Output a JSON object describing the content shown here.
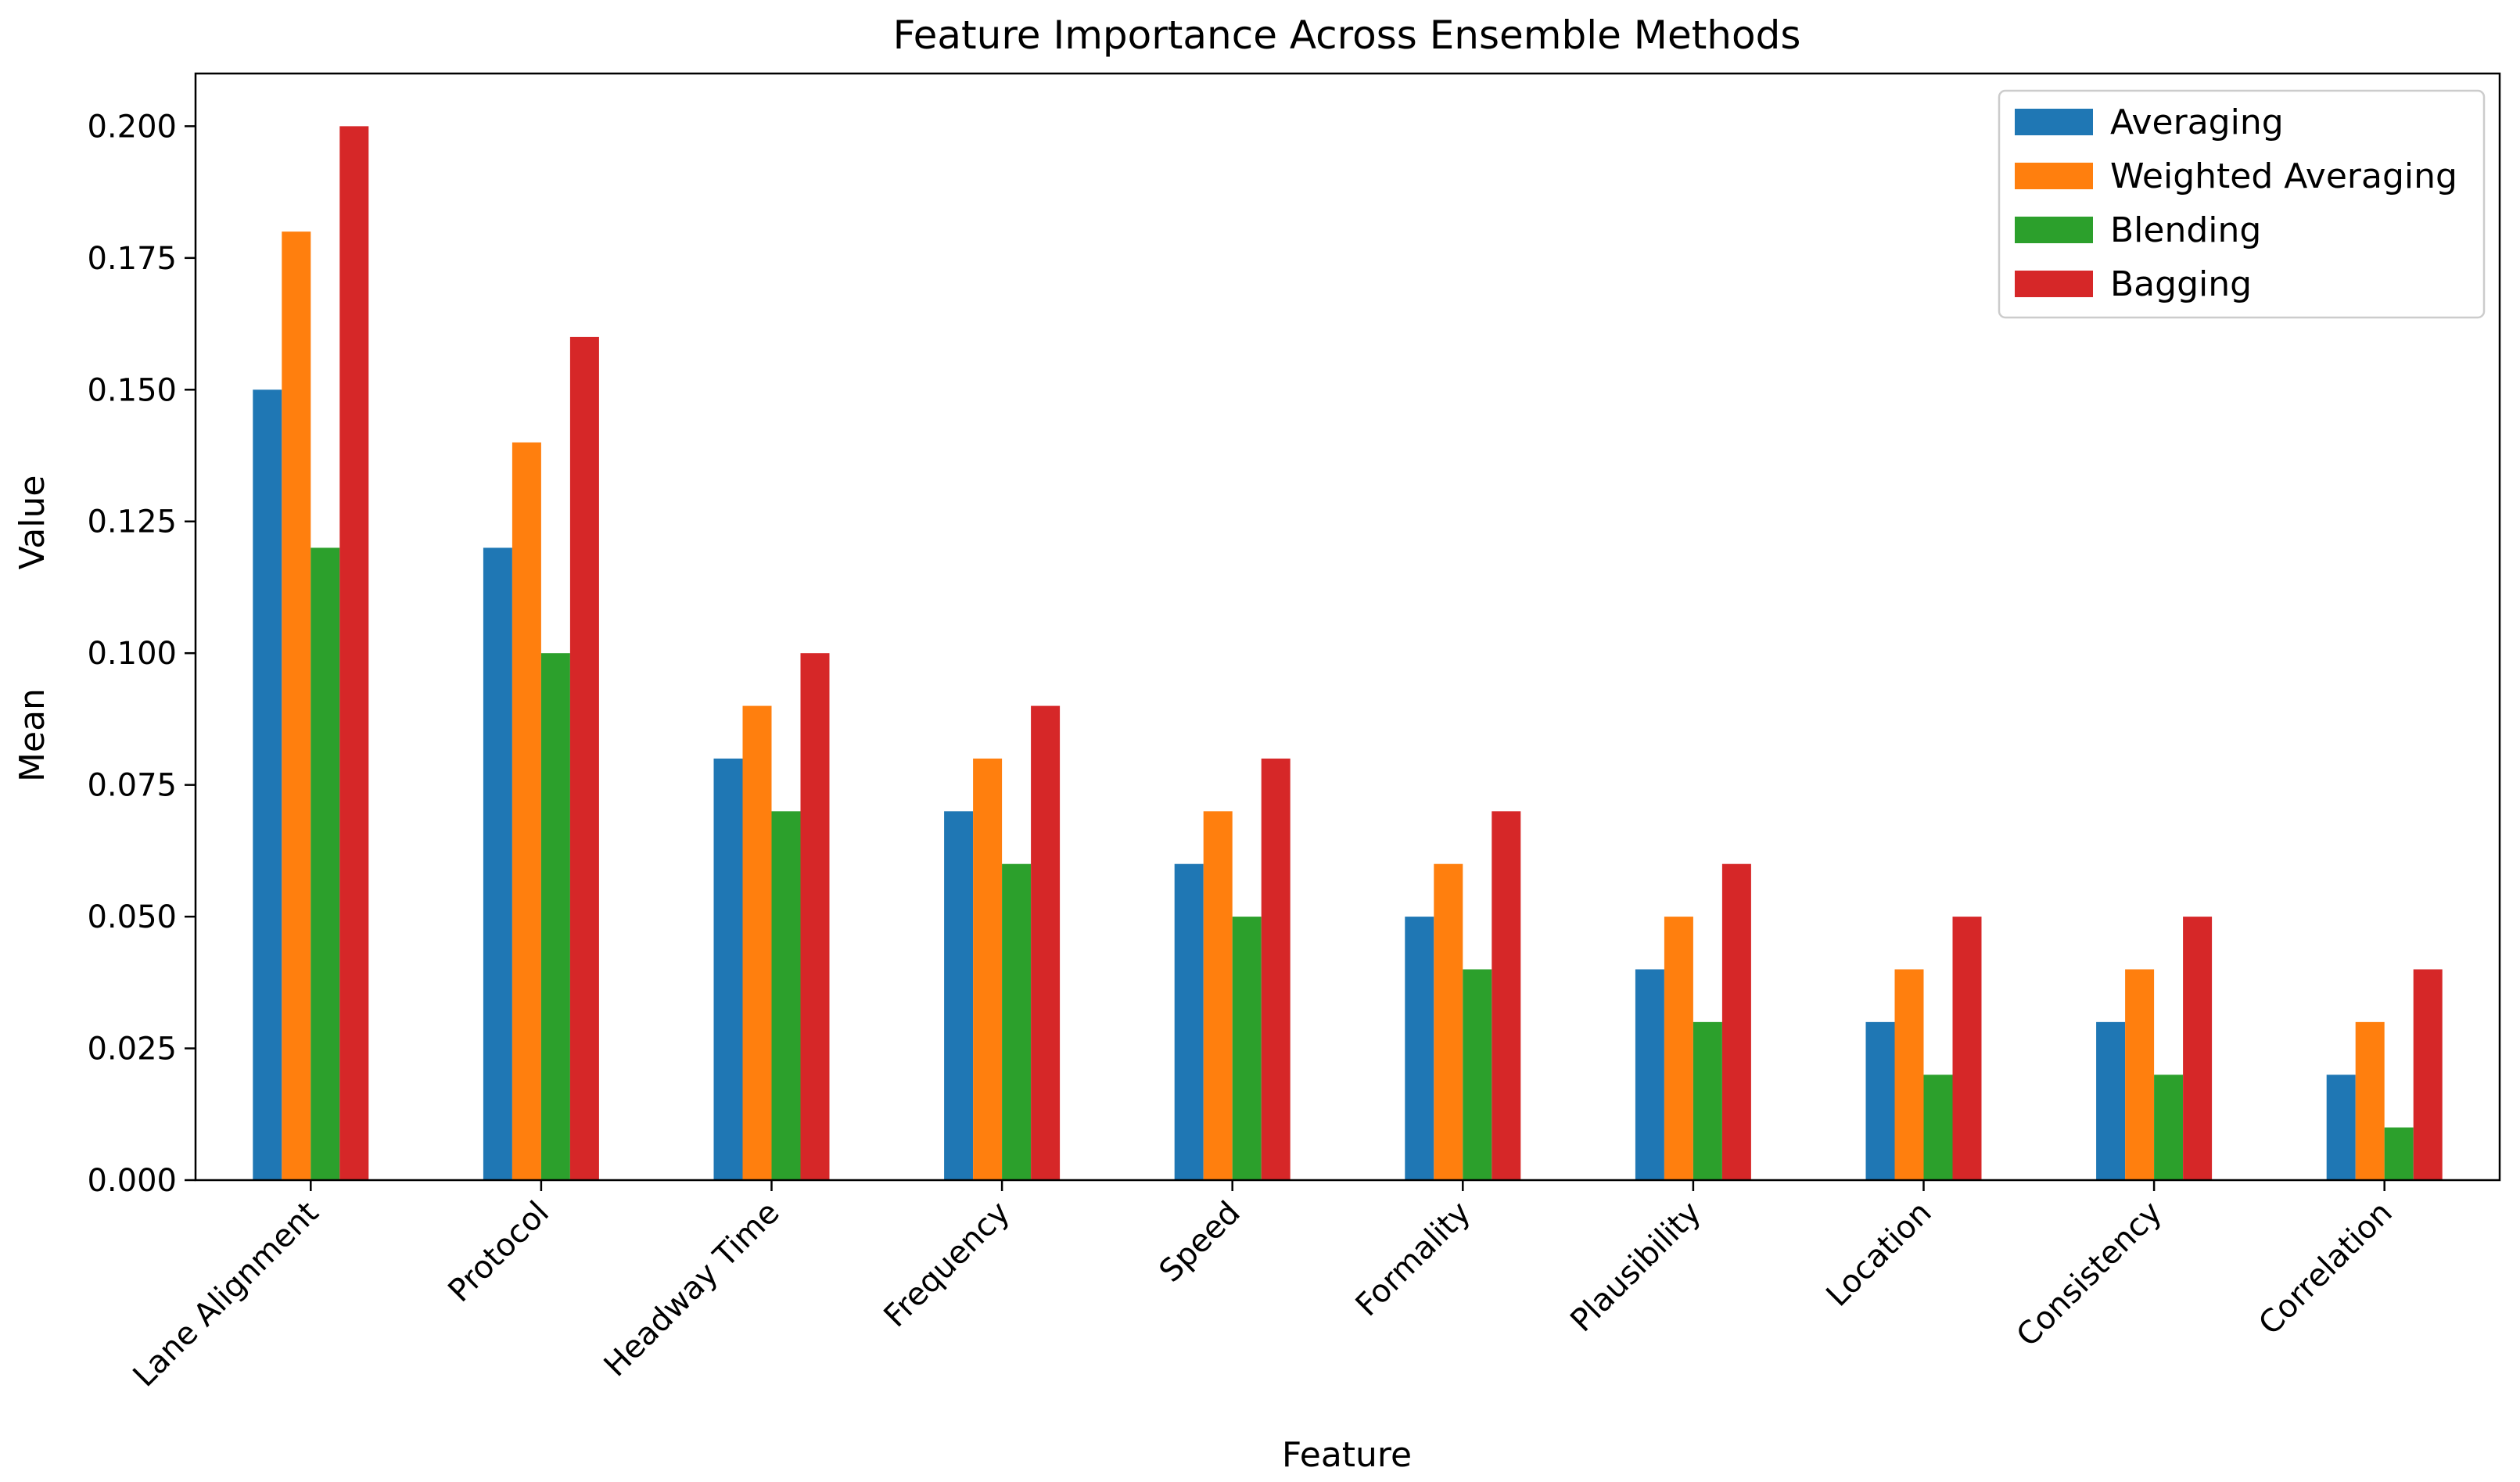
{
  "chart_data": {
    "type": "bar",
    "title": "Feature Importance Across Ensemble Methods",
    "xlabel": "Feature",
    "ylabel_lines": [
      "Mean",
      "Value"
    ],
    "categories": [
      "Lane Alignment",
      "Protocol",
      "Headway Time",
      "Frequency",
      "Speed",
      "Formality",
      "Plausibility",
      "Location",
      "Consistency",
      "Correlation"
    ],
    "series": [
      {
        "name": "Averaging",
        "color": "#1f77b4",
        "values": [
          0.15,
          0.12,
          0.08,
          0.07,
          0.06,
          0.05,
          0.04,
          0.03,
          0.03,
          0.02
        ]
      },
      {
        "name": "Weighted Averaging",
        "color": "#ff7f0e",
        "values": [
          0.18,
          0.14,
          0.09,
          0.08,
          0.07,
          0.06,
          0.05,
          0.04,
          0.04,
          0.03
        ]
      },
      {
        "name": "Blending",
        "color": "#2ca02c",
        "values": [
          0.12,
          0.1,
          0.07,
          0.06,
          0.05,
          0.04,
          0.03,
          0.02,
          0.02,
          0.01
        ]
      },
      {
        "name": "Bagging",
        "color": "#d62728",
        "values": [
          0.2,
          0.16,
          0.1,
          0.09,
          0.08,
          0.07,
          0.06,
          0.05,
          0.05,
          0.04
        ]
      }
    ],
    "yticks": [
      "0.000",
      "0.025",
      "0.050",
      "0.075",
      "0.100",
      "0.125",
      "0.150",
      "0.175",
      "0.200"
    ],
    "ylim": [
      0,
      0.21
    ],
    "grid": false,
    "legend_position": "top-right"
  }
}
